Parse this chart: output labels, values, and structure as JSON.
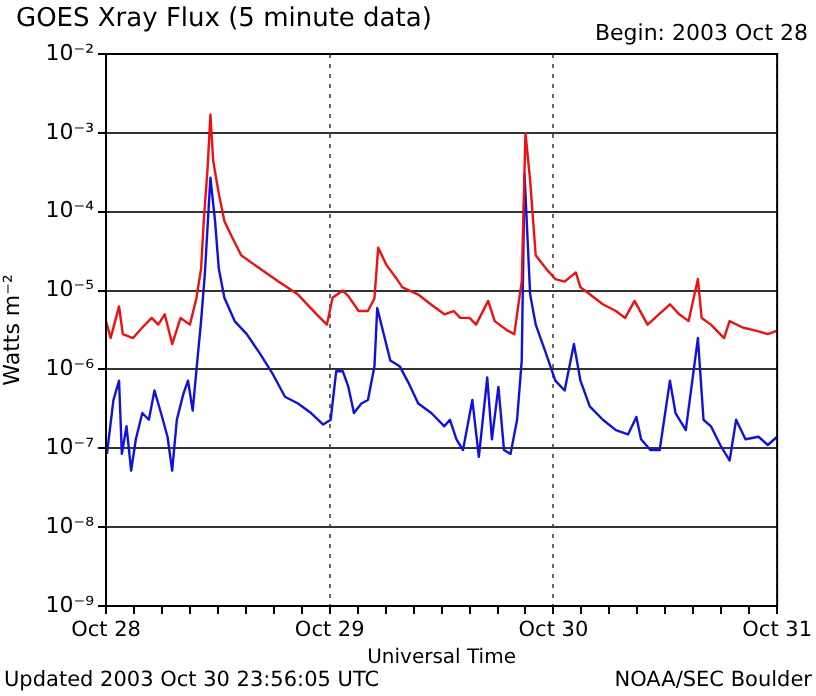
{
  "chart_data": {
    "type": "line",
    "title": "GOES Xray Flux (5 minute data)",
    "subtitle": "Begin:  2003 Oct 28",
    "xlabel": "Universal Time",
    "ylabel": "Watts m⁻²",
    "annotations": [
      "Updated 2003 Oct 30 23:56:05 UTC",
      "NOAA/SEC Boulder"
    ],
    "log": "y",
    "grid": true,
    "legend": false,
    "marker": "none",
    "line_style": "solid",
    "xlim": [
      "2003-10-28T00:00",
      "2003-10-31T00:00"
    ],
    "ylim": [
      1e-09,
      0.01
    ],
    "xticks": [
      {
        "value": "2003-10-28T00:00",
        "label": "Oct 28"
      },
      {
        "value": "2003-10-28T03:00",
        "label": null
      },
      {
        "value": "2003-10-28T06:00",
        "label": null
      },
      {
        "value": "2003-10-28T09:00",
        "label": null
      },
      {
        "value": "2003-10-28T12:00",
        "label": null
      },
      {
        "value": "2003-10-28T15:00",
        "label": null
      },
      {
        "value": "2003-10-28T18:00",
        "label": null
      },
      {
        "value": "2003-10-28T21:00",
        "label": null
      },
      {
        "value": "2003-10-29T00:00",
        "label": "Oct 29"
      },
      {
        "value": "2003-10-29T03:00",
        "label": null
      },
      {
        "value": "2003-10-29T06:00",
        "label": null
      },
      {
        "value": "2003-10-29T09:00",
        "label": null
      },
      {
        "value": "2003-10-29T12:00",
        "label": null
      },
      {
        "value": "2003-10-29T15:00",
        "label": null
      },
      {
        "value": "2003-10-29T18:00",
        "label": null
      },
      {
        "value": "2003-10-29T21:00",
        "label": null
      },
      {
        "value": "2003-10-30T00:00",
        "label": "Oct 30"
      },
      {
        "value": "2003-10-30T03:00",
        "label": null
      },
      {
        "value": "2003-10-30T06:00",
        "label": null
      },
      {
        "value": "2003-10-30T09:00",
        "label": null
      },
      {
        "value": "2003-10-30T12:00",
        "label": null
      },
      {
        "value": "2003-10-30T15:00",
        "label": null
      },
      {
        "value": "2003-10-30T18:00",
        "label": null
      },
      {
        "value": "2003-10-30T21:00",
        "label": null
      },
      {
        "value": "2003-10-31T00:00",
        "label": "Oct 31"
      }
    ],
    "yticks": [
      {
        "value": 1e-09,
        "label": "10⁻⁹"
      },
      {
        "value": 1e-08,
        "label": "10⁻⁸"
      },
      {
        "value": 1e-07,
        "label": "10⁻⁷"
      },
      {
        "value": 1e-06,
        "label": "10⁻⁶"
      },
      {
        "value": 1e-05,
        "label": "10⁻⁵"
      },
      {
        "value": 0.0001,
        "label": "10⁻⁴"
      },
      {
        "value": 0.001,
        "label": "10⁻³"
      },
      {
        "value": 0.01,
        "label": "10⁻²"
      }
    ],
    "series": [
      {
        "color": "#ee1111",
        "x": [
          "2003-10-28T00:00",
          "2003-10-28T00:30",
          "2003-10-28T01:24",
          "2003-10-28T01:48",
          "2003-10-28T02:54",
          "2003-10-28T03:54",
          "2003-10-28T04:54",
          "2003-10-28T05:36",
          "2003-10-28T06:18",
          "2003-10-28T07:06",
          "2003-10-28T08:00",
          "2003-10-28T09:00",
          "2003-10-28T09:42",
          "2003-10-28T10:12",
          "2003-10-28T10:30",
          "2003-10-28T10:54",
          "2003-10-28T11:12",
          "2003-10-28T11:30",
          "2003-10-28T12:06",
          "2003-10-28T12:42",
          "2003-10-28T13:24",
          "2003-10-28T14:30",
          "2003-10-28T16:30",
          "2003-10-28T18:30",
          "2003-10-28T20:36",
          "2003-10-28T22:36",
          "2003-10-28T23:42",
          "2003-10-29T00:18",
          "2003-10-29T01:24",
          "2003-10-29T02:00",
          "2003-10-29T03:06",
          "2003-10-29T04:06",
          "2003-10-29T04:48",
          "2003-10-29T05:12",
          "2003-10-29T06:06",
          "2003-10-29T07:12",
          "2003-10-29T07:48",
          "2003-10-29T09:30",
          "2003-10-29T10:54",
          "2003-10-29T12:18",
          "2003-10-29T13:18",
          "2003-10-29T14:00",
          "2003-10-29T15:00",
          "2003-10-29T15:42",
          "2003-10-29T17:00",
          "2003-10-29T17:42",
          "2003-10-29T19:06",
          "2003-10-29T19:48",
          "2003-10-29T20:24",
          "2003-10-29T20:36",
          "2003-10-29T21:00",
          "2003-10-29T21:30",
          "2003-10-29T22:06",
          "2003-10-29T23:12",
          "2003-10-30T00:12",
          "2003-10-30T01:12",
          "2003-10-30T02:24",
          "2003-10-30T02:54",
          "2003-10-30T03:54",
          "2003-10-30T05:18",
          "2003-10-30T06:42",
          "2003-10-30T07:42",
          "2003-10-30T08:42",
          "2003-10-30T10:06",
          "2003-10-30T12:30",
          "2003-10-30T13:30",
          "2003-10-30T14:30",
          "2003-10-30T15:30",
          "2003-10-30T15:54",
          "2003-10-30T16:54",
          "2003-10-30T18:18",
          "2003-10-30T18:54",
          "2003-10-30T20:18",
          "2003-10-30T21:42",
          "2003-10-30T23:00",
          "2003-10-31T00:00"
        ],
        "values": [
          4.1e-06,
          2.5e-06,
          6.3e-06,
          2.8e-06,
          2.5e-06,
          3.4e-06,
          4.5e-06,
          3.7e-06,
          5e-06,
          2.1e-06,
          4.5e-06,
          3.7e-06,
          8e-06,
          1.9e-05,
          8e-05,
          0.00036,
          0.0017,
          0.00044,
          0.00017,
          7.6e-05,
          5.1e-05,
          2.8e-05,
          1.9e-05,
          1.3e-05,
          8.9e-06,
          5e-06,
          3.7e-06,
          8.1e-06,
          1e-05,
          8.5e-06,
          5.5e-06,
          5.5e-06,
          8e-06,
          3.5e-05,
          2.1e-05,
          1.4e-05,
          1.1e-05,
          8.9e-06,
          6.6e-06,
          5e-06,
          5.5e-06,
          4.5e-06,
          4.5e-06,
          3.7e-06,
          7.4e-06,
          4.1e-06,
          3.1e-06,
          2.8e-06,
          9e-06,
          1.3e-05,
          0.001,
          0.00025,
          2.8e-05,
          1.9e-05,
          1.4e-05,
          1.3e-05,
          1.7e-05,
          1.1e-05,
          9e-06,
          6.7e-06,
          5.5e-06,
          4.5e-06,
          7.4e-06,
          3.7e-06,
          6.7e-06,
          5e-06,
          4.1e-06,
          1.4e-05,
          4.5e-06,
          3.7e-06,
          2.5e-06,
          4.1e-06,
          3.4e-06,
          3.1e-06,
          2.8e-06,
          3.1e-06
        ]
      },
      {
        "color": "#1111dd",
        "x": [
          "2003-10-28T00:06",
          "2003-10-28T00:48",
          "2003-10-28T01:24",
          "2003-10-28T01:42",
          "2003-10-28T02:12",
          "2003-10-28T02:42",
          "2003-10-28T03:12",
          "2003-10-28T03:54",
          "2003-10-28T04:36",
          "2003-10-28T05:12",
          "2003-10-28T05:54",
          "2003-10-28T06:36",
          "2003-10-28T07:06",
          "2003-10-28T07:36",
          "2003-10-28T08:18",
          "2003-10-28T08:48",
          "2003-10-28T09:18",
          "2003-10-28T09:48",
          "2003-10-28T10:12",
          "2003-10-28T10:36",
          "2003-10-28T11:12",
          "2003-10-28T11:42",
          "2003-10-28T12:06",
          "2003-10-28T12:42",
          "2003-10-28T13:48",
          "2003-10-28T15:06",
          "2003-10-28T16:30",
          "2003-10-28T17:54",
          "2003-10-28T19:12",
          "2003-10-28T20:36",
          "2003-10-28T22:00",
          "2003-10-28T23:18",
          "2003-10-29T00:06",
          "2003-10-29T00:42",
          "2003-10-29T01:24",
          "2003-10-29T02:00",
          "2003-10-29T02:36",
          "2003-10-29T03:24",
          "2003-10-29T04:06",
          "2003-10-29T04:48",
          "2003-10-29T05:06",
          "2003-10-29T05:48",
          "2003-10-29T06:30",
          "2003-10-29T07:30",
          "2003-10-29T08:30",
          "2003-10-29T09:30",
          "2003-10-29T10:54",
          "2003-10-29T12:18",
          "2003-10-29T12:54",
          "2003-10-29T13:36",
          "2003-10-29T14:18",
          "2003-10-29T15:18",
          "2003-10-29T16:00",
          "2003-10-29T16:54",
          "2003-10-29T17:24",
          "2003-10-29T18:06",
          "2003-10-29T18:42",
          "2003-10-29T19:24",
          "2003-10-29T20:06",
          "2003-10-29T20:36",
          "2003-10-29T20:54",
          "2003-10-29T21:30",
          "2003-10-29T22:06",
          "2003-10-29T23:12",
          "2003-10-30T00:12",
          "2003-10-30T01:12",
          "2003-10-30T02:12",
          "2003-10-30T02:54",
          "2003-10-30T03:54",
          "2003-10-30T05:18",
          "2003-10-30T06:42",
          "2003-10-30T08:00",
          "2003-10-30T08:54",
          "2003-10-30T09:24",
          "2003-10-30T10:24",
          "2003-10-30T11:24",
          "2003-10-30T12:30",
          "2003-10-30T13:06",
          "2003-10-30T14:12",
          "2003-10-30T15:30",
          "2003-10-30T16:06",
          "2003-10-30T16:54",
          "2003-10-30T17:54",
          "2003-10-30T18:54",
          "2003-10-30T19:36",
          "2003-10-30T20:36",
          "2003-10-30T22:00",
          "2003-10-30T23:00",
          "2003-10-31T00:00"
        ],
        "values": [
          8.5e-08,
          4.1e-07,
          7.2e-07,
          8.5e-08,
          1.9e-07,
          5.2e-08,
          1.3e-07,
          2.8e-07,
          2.3e-07,
          5.4e-07,
          2.8e-07,
          1.4e-07,
          5.2e-08,
          2.3e-07,
          4.9e-07,
          7.2e-07,
          3e-07,
          1.3e-06,
          4.1e-06,
          1.6e-05,
          0.00027,
          7.6e-05,
          1.9e-05,
          8.1e-06,
          4.1e-06,
          2.8e-06,
          1.6e-06,
          8.7e-07,
          4.5e-07,
          3.7e-07,
          2.8e-07,
          2e-07,
          2.3e-07,
          9.5e-07,
          9.5e-07,
          6e-07,
          2.8e-07,
          3.7e-07,
          4.1e-07,
          1.1e-06,
          6e-06,
          2.8e-06,
          1.3e-06,
          1.1e-06,
          6.6e-07,
          3.7e-07,
          2.8e-07,
          1.9e-07,
          2.3e-07,
          1.3e-07,
          9.5e-08,
          4.1e-07,
          7.8e-08,
          7.9e-07,
          1.3e-07,
          6e-07,
          9.5e-08,
          8.5e-08,
          2.3e-07,
          1.3e-06,
          0.0003,
          9e-06,
          3.7e-06,
          1.6e-06,
          7.2e-07,
          5.4e-07,
          2.1e-06,
          7.2e-07,
          3.4e-07,
          2.3e-07,
          1.7e-07,
          1.5e-07,
          2.5e-07,
          1.3e-07,
          9.5e-08,
          9.5e-08,
          7.2e-07,
          2.8e-07,
          1.7e-07,
          2.5e-06,
          2.3e-07,
          1.9e-07,
          1.1e-07,
          7e-08,
          2.3e-07,
          1.3e-07,
          1.4e-07,
          1.1e-07,
          1.4e-07
        ]
      }
    ]
  }
}
